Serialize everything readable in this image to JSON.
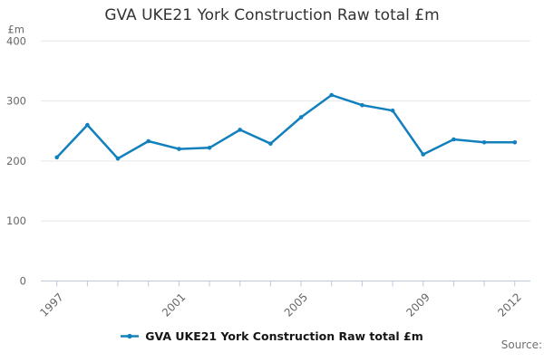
{
  "header": {
    "title": "GVA UKE21 York Construction Raw total £m"
  },
  "legend": {
    "label": "GVA UKE21 York Construction Raw total £m"
  },
  "footer": {
    "source_label": "Source:"
  },
  "chart_data": {
    "type": "line",
    "title": "GVA UKE21 York Construction Raw total £m",
    "unit_label": "£m",
    "x": [
      1997,
      1998,
      1999,
      2000,
      2001,
      2002,
      2003,
      2004,
      2005,
      2006,
      2007,
      2008,
      2009,
      2010,
      2011,
      2012
    ],
    "series": [
      {
        "name": "GVA UKE21 York Construction Raw total £m",
        "values": [
          206,
          260,
          204,
          233,
          220,
          222,
          252,
          229,
          273,
          310,
          293,
          284,
          211,
          236,
          231,
          231
        ]
      }
    ],
    "ylim": [
      0,
      400
    ],
    "y_ticks": [
      0,
      100,
      200,
      300,
      400
    ],
    "x_ticks_labeled": [
      1997,
      2001,
      2005,
      2009,
      2012
    ],
    "grid": "horizontal",
    "legend_position": "bottom",
    "marker": "dot",
    "colors": {
      "line": "#1380be",
      "grid": "#e6e6e6",
      "axis": "#bcc9dc",
      "tick_label": "#666666",
      "title": "#333333",
      "legend_text": "#161616",
      "source": "#6f6f6f",
      "background": "#ffffff"
    }
  }
}
